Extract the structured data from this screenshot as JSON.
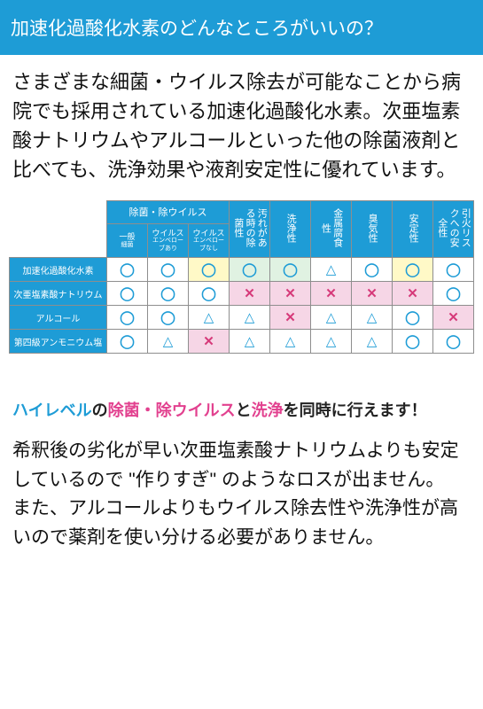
{
  "header": {
    "title": "加速化過酸化水素のどんなところがいいの？"
  },
  "intro": {
    "text": "さまざまな細菌・ウイルス除去が可能なことから病院でも採用されている加速化過酸化水素。次亜塩素酸ナトリウムやアルコールといった他の除菌液剤と比べても、洗浄効果や液剤安定性に優れています。"
  },
  "table": {
    "group_label": "除菌・除ウイルス",
    "sub_cols": [
      {
        "line1": "一般",
        "line2": "細菌"
      },
      {
        "line1": "ウイルス",
        "line2": "エンベローブあり"
      },
      {
        "line1": "ウイルス",
        "line2": "エンベローブなし"
      }
    ],
    "cols": [
      "汚れがある時の除菌性",
      "洗浄性",
      "金属腐食性",
      "臭気性",
      "安定性",
      "引火リスクへの安全性"
    ],
    "rows": [
      {
        "label": "加速化過酸化水素",
        "cells": [
          {
            "sym": "o",
            "bg": "w"
          },
          {
            "sym": "o",
            "bg": "w"
          },
          {
            "sym": "o",
            "bg": "y"
          },
          {
            "sym": "o",
            "bg": "g"
          },
          {
            "sym": "o",
            "bg": "g"
          },
          {
            "sym": "t",
            "bg": "w"
          },
          {
            "sym": "o",
            "bg": "w"
          },
          {
            "sym": "o",
            "bg": "y"
          },
          {
            "sym": "o",
            "bg": "w"
          }
        ]
      },
      {
        "label": "次亜塩素酸ナトリウム",
        "cells": [
          {
            "sym": "o",
            "bg": "w"
          },
          {
            "sym": "o",
            "bg": "w"
          },
          {
            "sym": "o",
            "bg": "w"
          },
          {
            "sym": "x",
            "bg": "p"
          },
          {
            "sym": "x",
            "bg": "p"
          },
          {
            "sym": "x",
            "bg": "p"
          },
          {
            "sym": "x",
            "bg": "p"
          },
          {
            "sym": "x",
            "bg": "p"
          },
          {
            "sym": "o",
            "bg": "w"
          }
        ]
      },
      {
        "label": "アルコール",
        "cells": [
          {
            "sym": "o",
            "bg": "w"
          },
          {
            "sym": "o",
            "bg": "w"
          },
          {
            "sym": "t",
            "bg": "w"
          },
          {
            "sym": "t",
            "bg": "w"
          },
          {
            "sym": "x",
            "bg": "p"
          },
          {
            "sym": "t",
            "bg": "w"
          },
          {
            "sym": "t",
            "bg": "w"
          },
          {
            "sym": "o",
            "bg": "w"
          },
          {
            "sym": "x",
            "bg": "p"
          }
        ]
      },
      {
        "label": "第四級アンモニウム塩",
        "cells": [
          {
            "sym": "o",
            "bg": "w"
          },
          {
            "sym": "t",
            "bg": "w"
          },
          {
            "sym": "x",
            "bg": "p"
          },
          {
            "sym": "t",
            "bg": "w"
          },
          {
            "sym": "t",
            "bg": "w"
          },
          {
            "sym": "t",
            "bg": "w"
          },
          {
            "sym": "t",
            "bg": "w"
          },
          {
            "sym": "o",
            "bg": "w"
          },
          {
            "sym": "o",
            "bg": "w"
          }
        ]
      }
    ]
  },
  "symbols": {
    "o": "◯",
    "t": "△",
    "x": "✕"
  },
  "subheading": {
    "p1": "ハイレベル",
    "p2": "の",
    "p3": "除菌・除ウイルス",
    "p4": "と",
    "p5": "洗浄",
    "p6": "を同時に行えます！"
  },
  "body2": {
    "text": "希釈後の劣化が早い次亜塩素酸ナトリウムよりも安定しているので \"作りすぎ\" のようなロスが出ません。\nまた、アルコールよりもウイルス除去性や洗浄性が高いので薬剤を使い分ける必要がありません。"
  },
  "colors": {
    "brand_blue": "#1e9cd6",
    "pink": "#e2418f",
    "cell_yellow": "#fff9c7",
    "cell_green": "#e0f2e2",
    "cell_pink": "#f6d6e6"
  }
}
